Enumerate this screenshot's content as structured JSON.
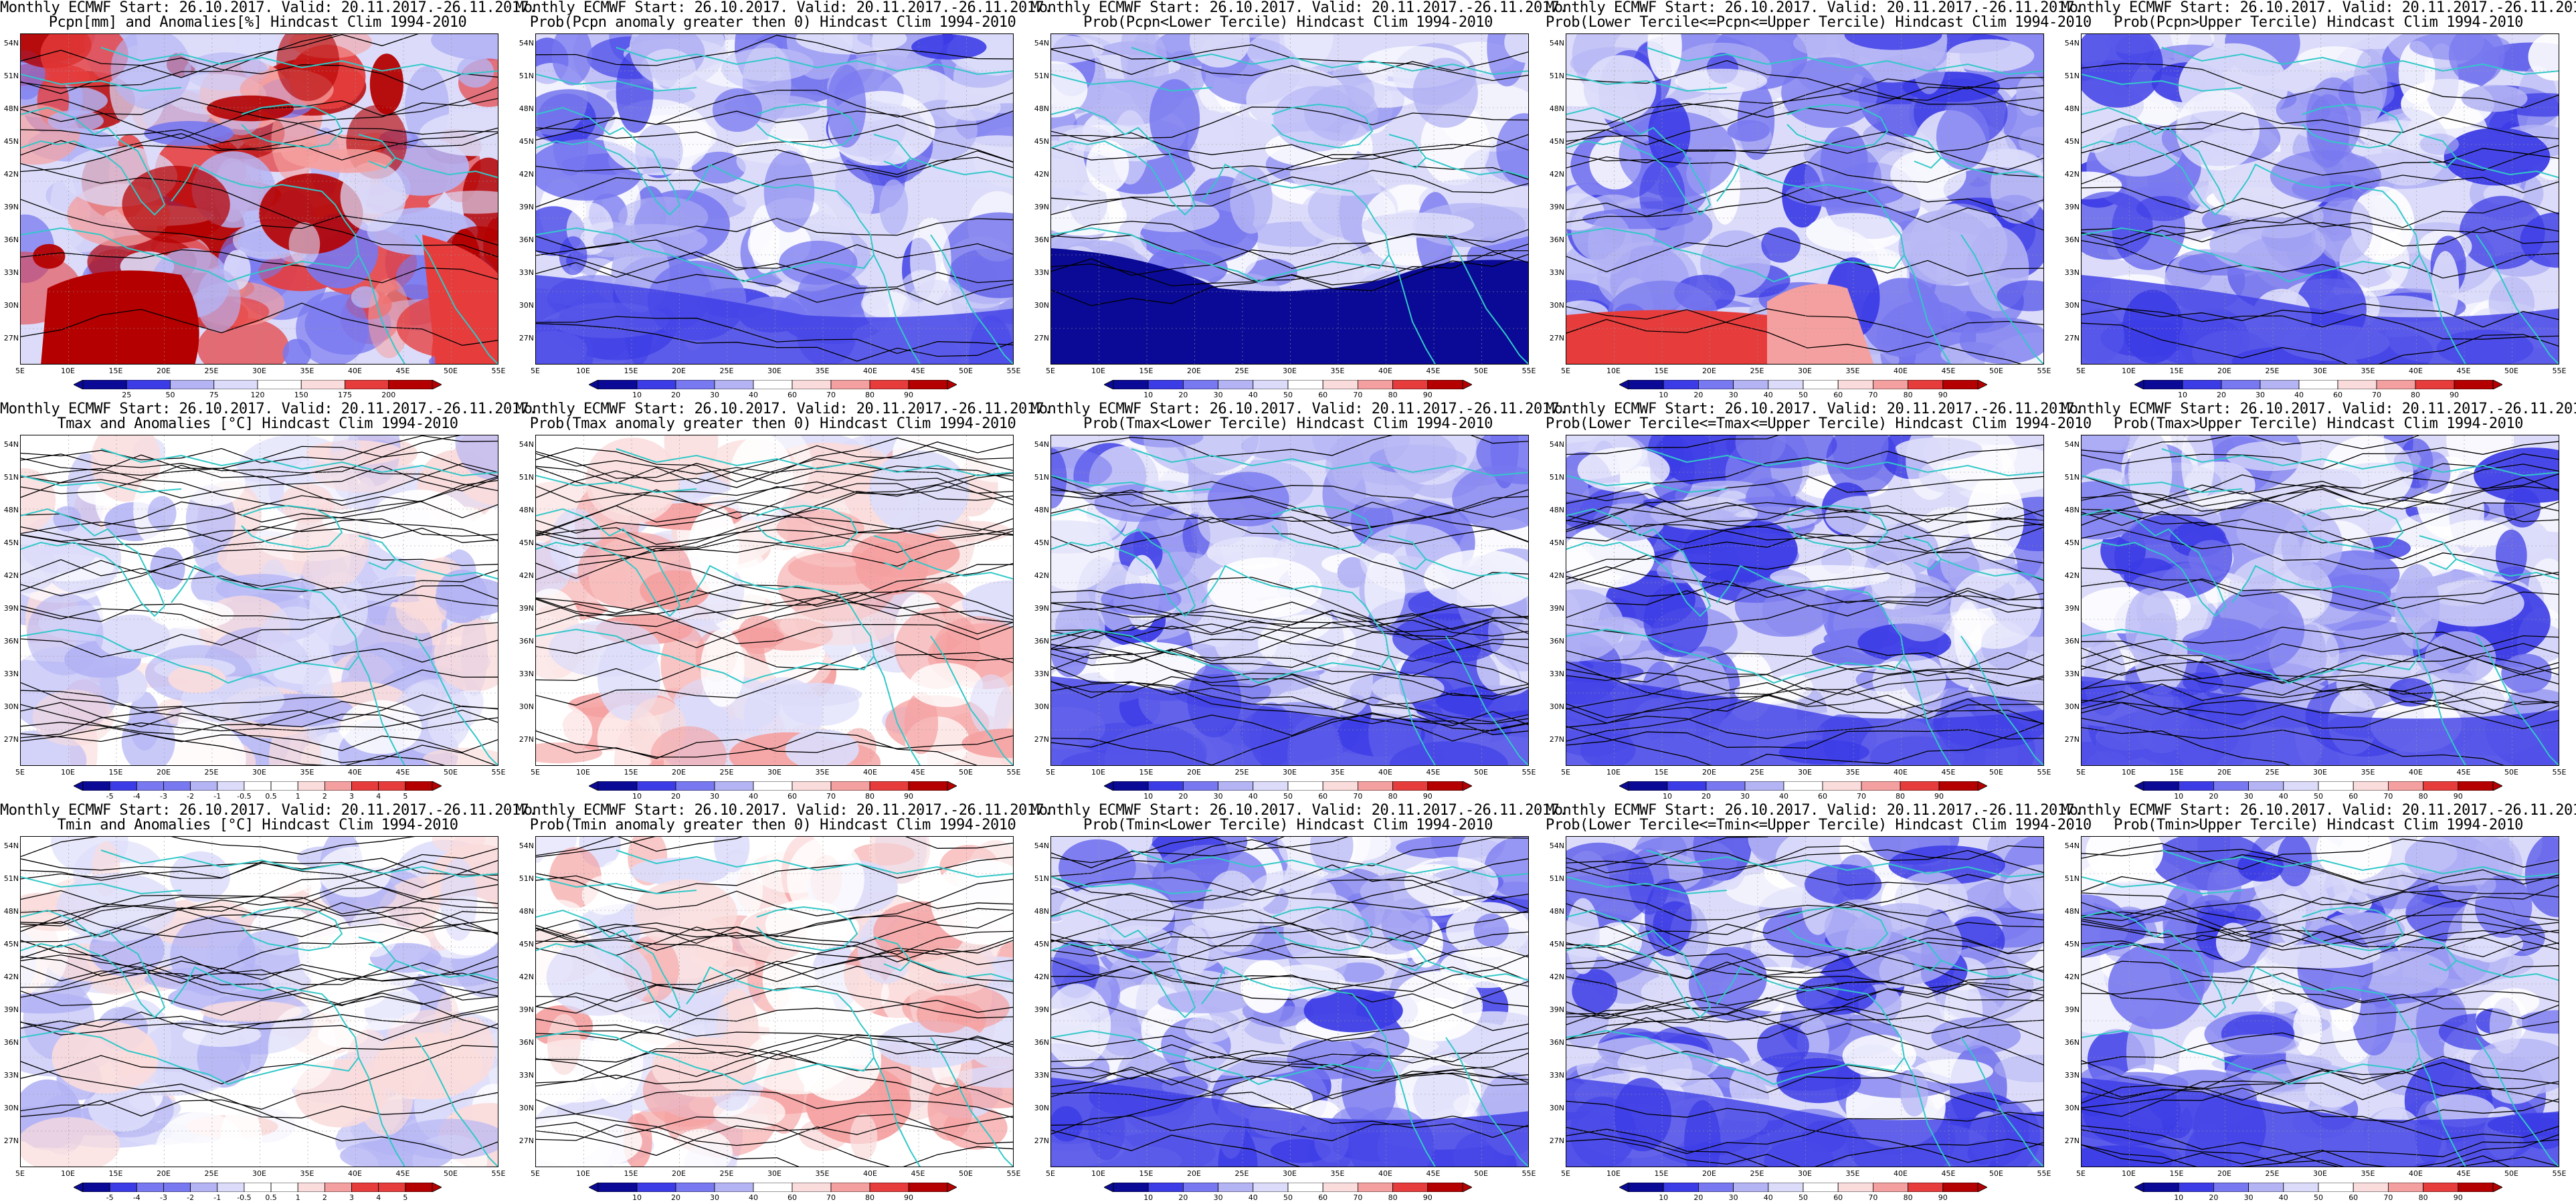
{
  "header_line": "Monthly ECMWF Start: 26.10.2017. Valid: 20.11.2017.-26.11.2017.",
  "lat_labels": [
    "54N",
    "51N",
    "48N",
    "45N",
    "42N",
    "39N",
    "36N",
    "33N",
    "30N",
    "27N"
  ],
  "lon_labels": [
    "5E",
    "10E",
    "15E",
    "20E",
    "25E",
    "30E",
    "35E",
    "40E",
    "45E",
    "50E",
    "55E"
  ],
  "panels": [
    {
      "subtitle": "Pcpn[mm] and Anomalies[%] Hindcast Clim 1994-2010",
      "kind": "anom_pcpn",
      "cbar": [
        "25",
        "50",
        "75",
        "120",
        "150",
        "175",
        "200"
      ]
    },
    {
      "subtitle": "Prob(Pcpn anomaly greater then 0) Hindcast Clim 1994-2010",
      "kind": "prob_blue",
      "cbar": [
        "10",
        "20",
        "30",
        "40",
        "60",
        "70",
        "80",
        "90"
      ]
    },
    {
      "subtitle": "Prob(Pcpn<Lower Tercile) Hindcast Clim 1994-2010",
      "kind": "prob_deep",
      "cbar": [
        "10",
        "20",
        "30",
        "40",
        "50",
        "60",
        "70",
        "80",
        "90"
      ]
    },
    {
      "subtitle": "Prob(Lower Tercile<=Pcpn<=Upper Tercile) Hindcast Clim 1994-2010",
      "kind": "prob_mid_red",
      "cbar": [
        "10",
        "20",
        "30",
        "40",
        "50",
        "60",
        "70",
        "80",
        "90"
      ]
    },
    {
      "subtitle": "Prob(Pcpn>Upper Tercile) Hindcast Clim 1994-2010",
      "kind": "prob_blue2",
      "cbar": [
        "10",
        "20",
        "30",
        "40",
        "60",
        "70",
        "80",
        "90"
      ]
    },
    {
      "subtitle": "Tmax and Anomalies [°C] Hindcast Clim 1994-2010",
      "kind": "anom_temp",
      "cbar": [
        "-5",
        "-4",
        "-3",
        "-2",
        "-1",
        "-0.5",
        "0.5",
        "1",
        "2",
        "3",
        "4",
        "5"
      ]
    },
    {
      "subtitle": "Prob(Tmax anomaly greater then 0) Hindcast Clim 1994-2010",
      "kind": "prob_light",
      "cbar": [
        "10",
        "20",
        "30",
        "40",
        "60",
        "70",
        "80",
        "90"
      ]
    },
    {
      "subtitle": "Prob(Tmax<Lower Tercile) Hindcast Clim 1994-2010",
      "kind": "prob_blue",
      "cbar": [
        "10",
        "20",
        "30",
        "40",
        "50",
        "60",
        "70",
        "80",
        "90"
      ]
    },
    {
      "subtitle": "Prob(Lower Tercile<=Tmax<=Upper Tercile) Hindcast Clim 1994-2010",
      "kind": "prob_blue",
      "cbar": [
        "10",
        "20",
        "30",
        "40",
        "60",
        "70",
        "80",
        "90"
      ]
    },
    {
      "subtitle": "Prob(Tmax>Upper Tercile) Hindcast Clim 1994-2010",
      "kind": "prob_blue2",
      "cbar": [
        "10",
        "20",
        "30",
        "40",
        "50",
        "60",
        "70",
        "80",
        "90"
      ]
    },
    {
      "subtitle": "Tmin and Anomalies [°C] Hindcast Clim 1994-2010",
      "kind": "anom_temp",
      "cbar": [
        "-5",
        "-4",
        "-3",
        "-2",
        "-1",
        "-0.5",
        "0.5",
        "1",
        "2",
        "3",
        "4",
        "5"
      ]
    },
    {
      "subtitle": "Prob(Tmin anomaly greater then 0) Hindcast Clim 1994-2010",
      "kind": "prob_light",
      "cbar": [
        "10",
        "20",
        "30",
        "40",
        "60",
        "70",
        "80",
        "90"
      ]
    },
    {
      "subtitle": "Prob(Tmin<Lower Tercile) Hindcast Clim 1994-2010",
      "kind": "prob_blue",
      "cbar": [
        "10",
        "20",
        "30",
        "40",
        "50",
        "60",
        "70",
        "80",
        "90"
      ]
    },
    {
      "subtitle": "Prob(Lower Tercile<=Tmin<=Upper Tercile) Hindcast Clim 1994-2010",
      "kind": "prob_blue",
      "cbar": [
        "10",
        "20",
        "30",
        "40",
        "50",
        "60",
        "70",
        "80",
        "90"
      ]
    },
    {
      "subtitle": "Prob(Tmin>Upper Tercile) Hindcast Clim 1994-2010",
      "kind": "prob_blue2",
      "cbar": [
        "10",
        "20",
        "30",
        "40",
        "50",
        "60",
        "70",
        "80",
        "90"
      ]
    }
  ],
  "colors": {
    "deep_blue": "#0a0a96",
    "blue": "#3c3ce6",
    "mid_blue": "#7878f0",
    "light_blue": "#b4b4f5",
    "pale_blue": "#dcdcfa",
    "pale_red": "#fadcdc",
    "light_red": "#f5a0a0",
    "red": "#e63c3c",
    "deep_red": "#b40000",
    "coast": "#32c8c8",
    "contour": "#000000"
  }
}
